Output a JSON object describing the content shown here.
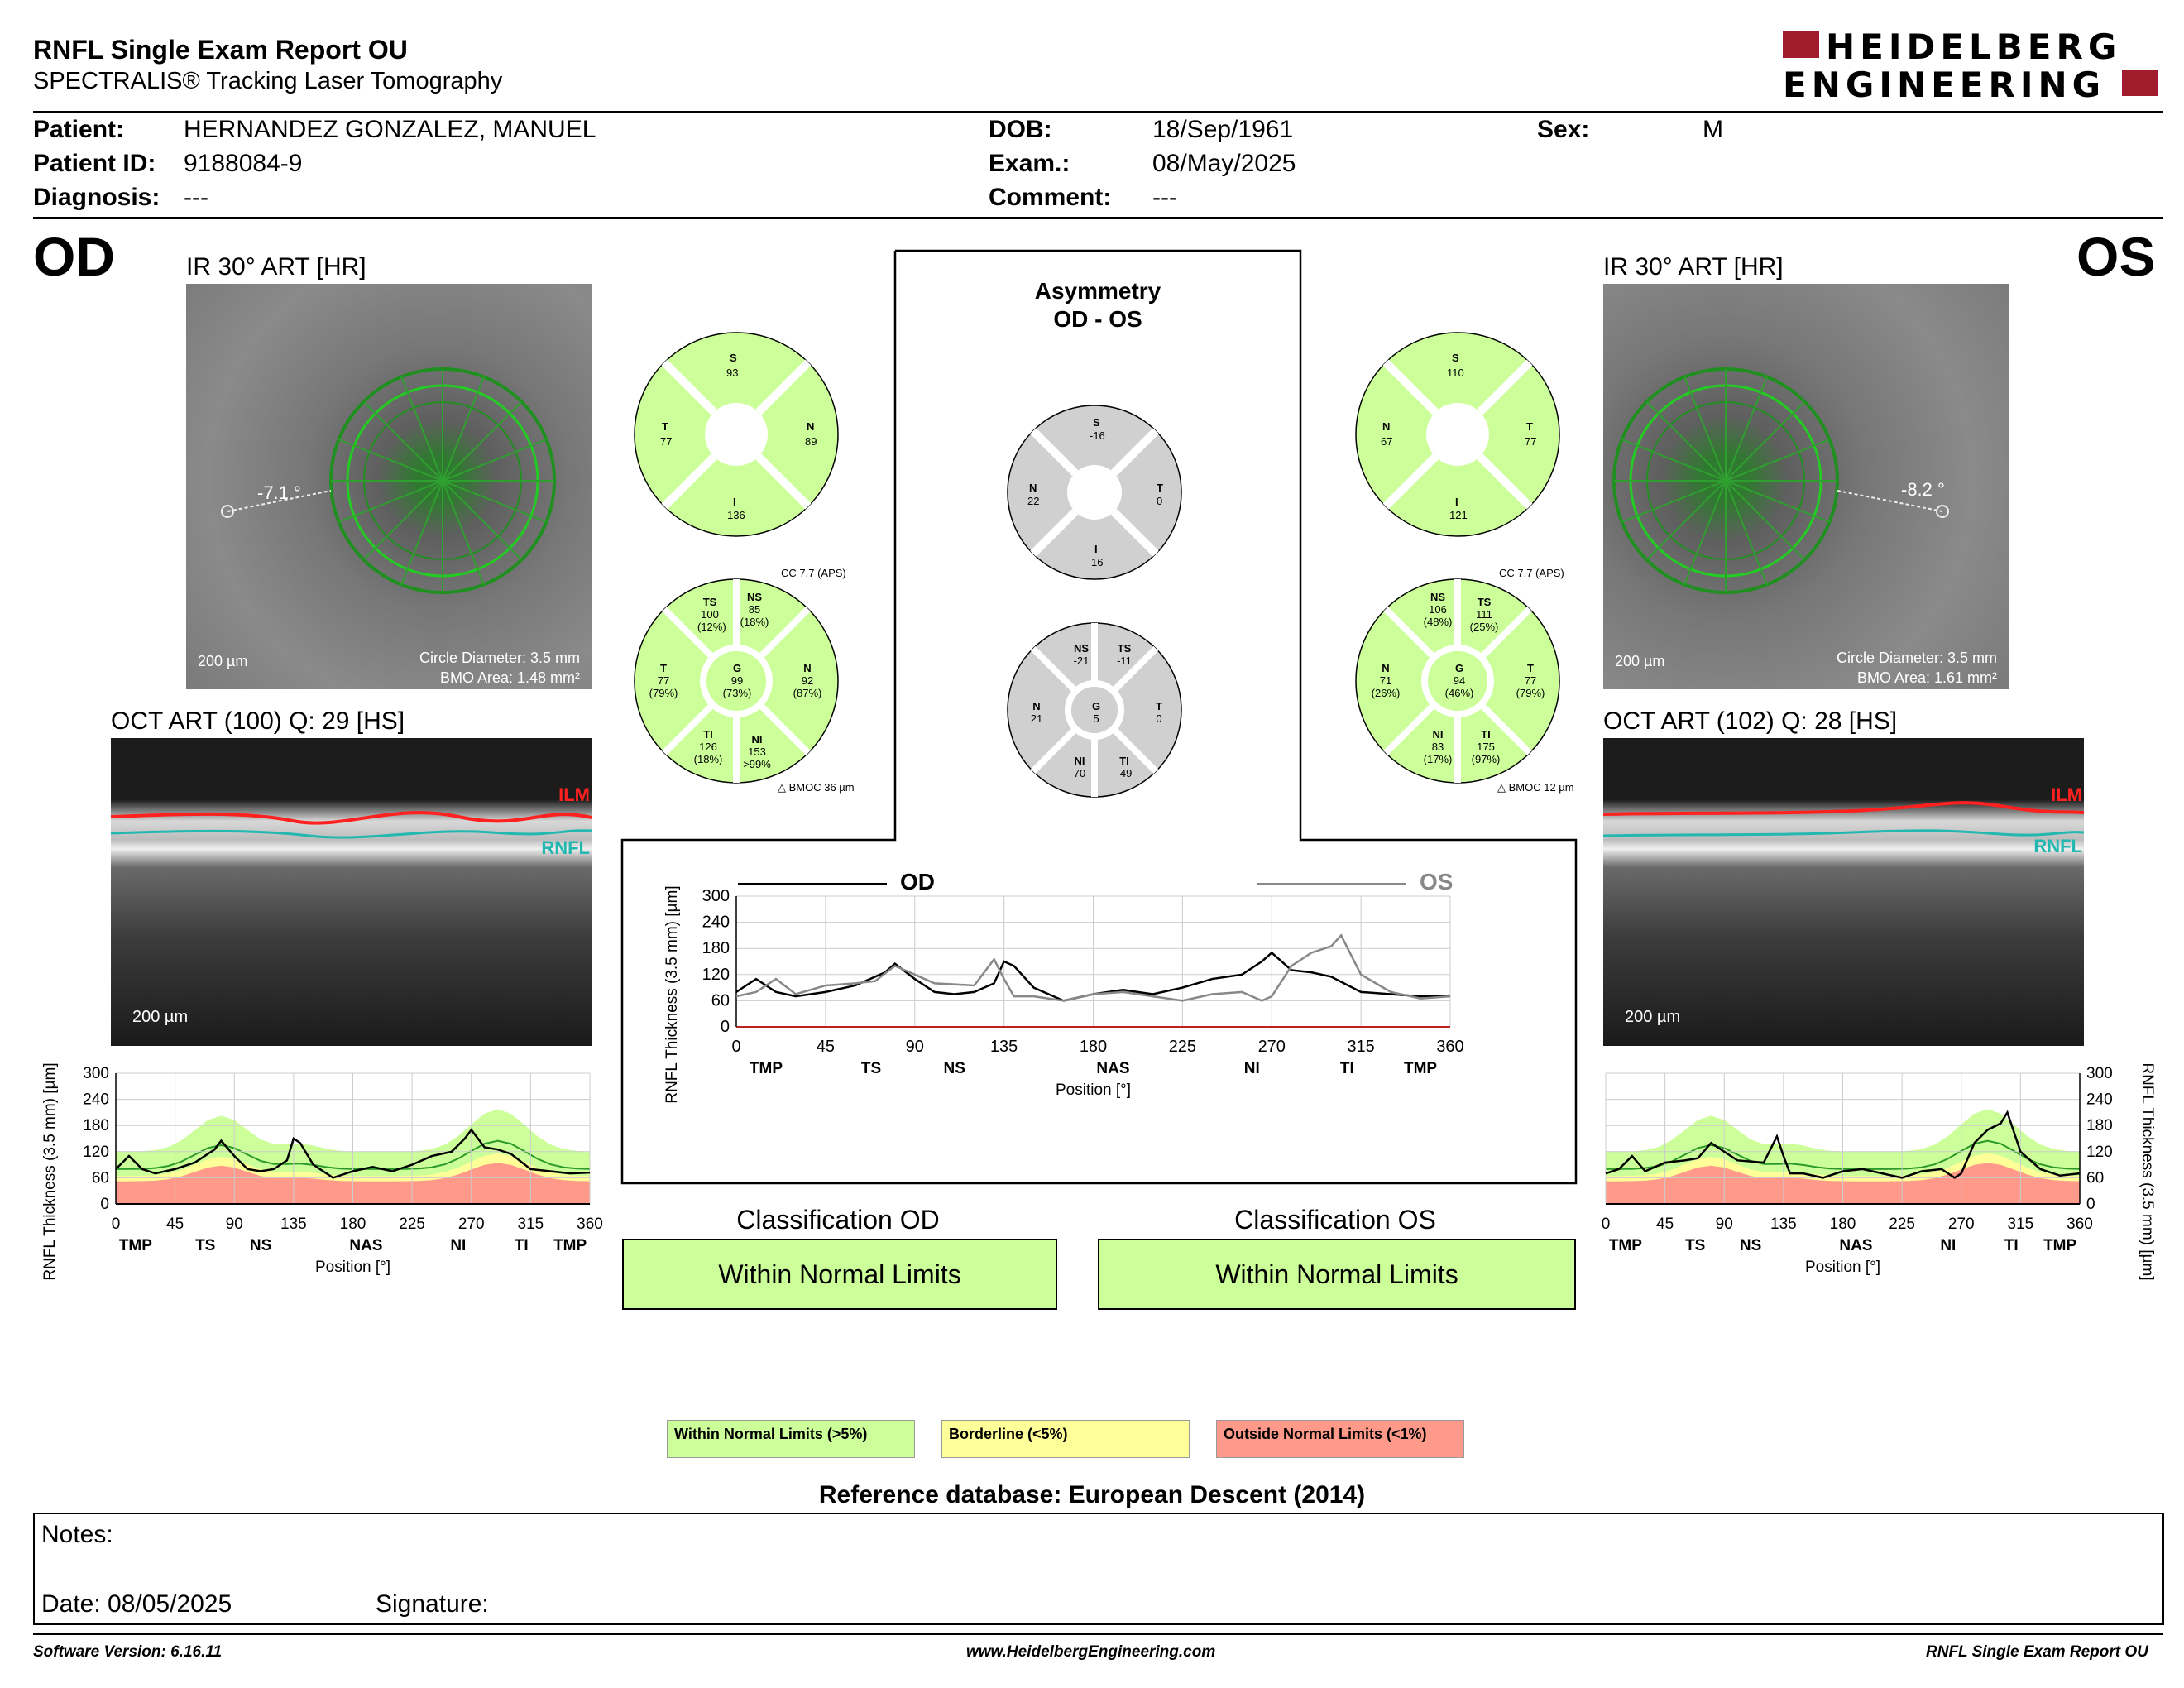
{
  "header": {
    "title": "RNFL Single Exam Report OU",
    "subtitle": "SPECTRALIS® Tracking Laser Tomography",
    "logo_line1": "HEIDELBERG",
    "logo_line2": "ENGINEERING",
    "logo_color": "#a01c2d"
  },
  "patient": {
    "patient_label": "Patient:",
    "patient_value": "HERNANDEZ GONZALEZ, MANUEL",
    "id_label": "Patient ID:",
    "id_value": "9188084-9",
    "diag_label": "Diagnosis:",
    "diag_value": "---",
    "dob_label": "DOB:",
    "dob_value": "18/Sep/1961",
    "exam_label": "Exam.:",
    "exam_value": "08/May/2025",
    "comment_label": "Comment:",
    "comment_value": "---",
    "sex_label": "Sex:",
    "sex_value": "M"
  },
  "od": {
    "eye": "OD",
    "ir_caption": "IR 30° ART [HR]",
    "angle": "-7.1 °",
    "scale": "200 µm",
    "circle_diameter": "Circle Diameter: 3.5 mm",
    "bmo_area": "BMO Area: 1.48 mm²",
    "oct_caption": "OCT ART (100) Q: 29 [HS]",
    "ilm": "ILM",
    "rnfl": "RNFL",
    "oct_scale": "200 µm",
    "cc": "CC 7.7 (APS)",
    "bmoc": "BMOC 36 µm",
    "quad": {
      "S": "93",
      "T": "77",
      "N": "89",
      "I": "136"
    },
    "sect": {
      "TS": [
        "100",
        "(12%)"
      ],
      "NS": [
        "85",
        "(18%)"
      ],
      "T": [
        "77",
        "(79%)"
      ],
      "G": [
        "99",
        "(73%)"
      ],
      "N": [
        "92",
        "(87%)"
      ],
      "TI": [
        "126",
        "(18%)"
      ],
      "NI": [
        "153",
        ">99%"
      ]
    }
  },
  "os": {
    "eye": "OS",
    "ir_caption": "IR 30° ART [HR]",
    "angle": "-8.2 °",
    "scale": "200 µm",
    "circle_diameter": "Circle Diameter: 3.5 mm",
    "bmo_area": "BMO Area: 1.61 mm²",
    "oct_caption": "OCT ART (102) Q: 28 [HS]",
    "ilm": "ILM",
    "rnfl": "RNFL",
    "oct_scale": "200 µm",
    "cc": "CC 7.7 (APS)",
    "bmoc": "BMOC 12 µm",
    "quad": {
      "S": "110",
      "N": "67",
      "T": "77",
      "I": "121"
    },
    "sect": {
      "NS": [
        "106",
        "(48%)"
      ],
      "TS": [
        "111",
        "(25%)"
      ],
      "N": [
        "71",
        "(26%)"
      ],
      "G": [
        "94",
        "(46%)"
      ],
      "T": [
        "77",
        "(79%)"
      ],
      "NI": [
        "83",
        "(17%)"
      ],
      "TI": [
        "175",
        "(97%)"
      ]
    }
  },
  "asymmetry": {
    "title1": "Asymmetry",
    "title2": "OD - OS",
    "quad": {
      "S": "-16",
      "N": "22",
      "T": "0",
      "I": "16"
    },
    "sect": {
      "NS": "-21",
      "TS": "-11",
      "N": "21",
      "G": "5",
      "T": "0",
      "NI": "70",
      "TI": "-49"
    },
    "legend_od": "OD",
    "legend_os": "OS"
  },
  "classification": {
    "od_title": "Classification OD",
    "od_value": "Within Normal Limits",
    "os_title": "Classification OS",
    "os_value": "Within Normal Limits"
  },
  "legend": {
    "wnl": "Within Normal Limits (>5%)",
    "wnl_color": "#ccff99",
    "bl": "Borderline (<5%)",
    "bl_color": "#ffff99",
    "onl": "Outside Normal Limits (<1%)",
    "onl_color": "#ff9a8a"
  },
  "reference": "Reference database: European Descent (2014)",
  "notes": {
    "notes_label": "Notes:",
    "date_label": "Date: 08/05/2025",
    "signature_label": "Signature:"
  },
  "footer": {
    "left": "Software Version: 6.16.11",
    "center": "www.HeidelbergEngineering.com",
    "right": "RNFL Single Exam Report OU"
  },
  "chart_data": [
    {
      "type": "line",
      "title": "",
      "xlabel": "Position [°]",
      "ylabel": "RNFL Thickness (3.5 mm) [µm]",
      "xlim": [
        0,
        360
      ],
      "ylim": [
        0,
        300
      ],
      "xticks": [
        "0",
        "45",
        "90",
        "135",
        "180",
        "225",
        "270",
        "315",
        "360"
      ],
      "yticks": [
        "0",
        "60",
        "120",
        "180",
        "240",
        "300"
      ],
      "sector_labels": [
        "TMP",
        "TS",
        "NS",
        "NAS",
        "NI",
        "TI",
        "TMP"
      ],
      "series": [
        {
          "name": "OD",
          "color": "#000000",
          "x": [
            0,
            10,
            20,
            30,
            45,
            60,
            75,
            80,
            90,
            100,
            110,
            120,
            130,
            135,
            140,
            150,
            165,
            180,
            195,
            210,
            225,
            240,
            255,
            265,
            270,
            280,
            290,
            300,
            315,
            330,
            345,
            360
          ],
          "y": [
            80,
            110,
            80,
            70,
            80,
            95,
            125,
            145,
            110,
            80,
            75,
            80,
            100,
            150,
            140,
            90,
            60,
            75,
            85,
            75,
            90,
            110,
            120,
            150,
            170,
            130,
            125,
            115,
            80,
            75,
            70,
            72
          ]
        },
        {
          "name": "OS",
          "color": "#888888",
          "x": [
            0,
            10,
            20,
            30,
            45,
            60,
            70,
            80,
            90,
            100,
            120,
            130,
            135,
            140,
            150,
            165,
            180,
            195,
            210,
            225,
            240,
            255,
            265,
            270,
            280,
            290,
            300,
            305,
            315,
            330,
            345,
            360
          ],
          "y": [
            70,
            80,
            110,
            75,
            95,
            100,
            105,
            140,
            120,
            100,
            95,
            155,
            110,
            70,
            70,
            60,
            75,
            80,
            70,
            60,
            75,
            80,
            60,
            70,
            140,
            170,
            185,
            210,
            120,
            80,
            65,
            70
          ]
        }
      ]
    },
    {
      "type": "line",
      "title": "",
      "xlabel": "Position [°]",
      "ylabel": "RNFL Thickness (3.5 mm) [µm]",
      "xlim": [
        0,
        360
      ],
      "ylim": [
        0,
        300
      ],
      "xticks": [
        "0",
        "45",
        "90",
        "135",
        "180",
        "225",
        "270",
        "315",
        "360"
      ],
      "yticks": [
        "0",
        "60",
        "120",
        "180",
        "240",
        "300"
      ],
      "sector_labels": [
        "TMP",
        "TS",
        "NS",
        "NAS",
        "NI",
        "TI",
        "TMP"
      ],
      "series": [
        {
          "name": "OD",
          "color": "#000000",
          "x": [
            0,
            10,
            20,
            30,
            45,
            60,
            75,
            80,
            90,
            100,
            110,
            120,
            130,
            135,
            140,
            150,
            165,
            180,
            195,
            210,
            225,
            240,
            255,
            265,
            270,
            280,
            290,
            300,
            315,
            330,
            345,
            360
          ],
          "y": [
            80,
            110,
            80,
            70,
            80,
            95,
            125,
            145,
            110,
            80,
            75,
            80,
            100,
            150,
            140,
            90,
            60,
            75,
            85,
            75,
            90,
            110,
            120,
            150,
            170,
            130,
            125,
            115,
            80,
            75,
            70,
            72
          ]
        }
      ]
    },
    {
      "type": "line",
      "title": "",
      "xlabel": "Position [°]",
      "ylabel": "RNFL Thickness (3.5 mm) [µm]",
      "xlim": [
        0,
        360
      ],
      "ylim": [
        0,
        300
      ],
      "xticks": [
        "0",
        "45",
        "90",
        "135",
        "180",
        "225",
        "270",
        "315",
        "360"
      ],
      "yticks": [
        "0",
        "60",
        "120",
        "180",
        "240",
        "300"
      ],
      "sector_labels": [
        "TMP",
        "TS",
        "NS",
        "NAS",
        "NI",
        "TI",
        "TMP"
      ],
      "series": [
        {
          "name": "OS",
          "color": "#000000",
          "x": [
            0,
            10,
            20,
            30,
            45,
            60,
            70,
            80,
            90,
            100,
            120,
            130,
            135,
            140,
            150,
            165,
            180,
            195,
            210,
            225,
            240,
            255,
            265,
            270,
            280,
            290,
            300,
            305,
            315,
            330,
            345,
            360
          ],
          "y": [
            70,
            80,
            110,
            75,
            95,
            100,
            105,
            140,
            120,
            100,
            95,
            155,
            110,
            70,
            70,
            60,
            75,
            80,
            70,
            60,
            75,
            80,
            60,
            70,
            140,
            170,
            185,
            210,
            120,
            80,
            65,
            70
          ]
        }
      ]
    }
  ]
}
